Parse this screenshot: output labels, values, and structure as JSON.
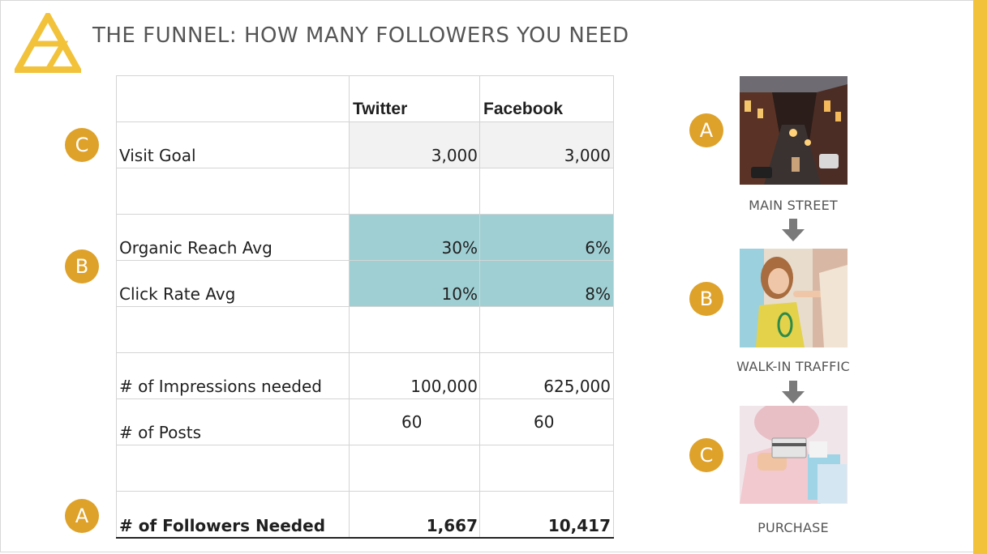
{
  "title": "THE FUNNEL: HOW MANY FOLLOWERS YOU NEED",
  "table": {
    "columns": [
      "Twitter",
      "Facebook"
    ],
    "rows": {
      "visit_goal": {
        "label": "Visit Goal",
        "twitter": "3,000",
        "facebook": "3,000"
      },
      "organic_reach": {
        "label": "Organic Reach Avg",
        "twitter": "30%",
        "facebook": "6%"
      },
      "click_rate": {
        "label": "Click Rate Avg",
        "twitter": "10%",
        "facebook": "8%"
      },
      "impressions": {
        "label": "# of Impressions needed",
        "twitter": "100,000",
        "facebook": "625,000"
      },
      "posts": {
        "label": "# of Posts",
        "twitter": "60",
        "facebook": "60"
      },
      "followers": {
        "label": "# of Followers Needed",
        "twitter": "1,667",
        "facebook": "10,417"
      }
    },
    "badges": {
      "visit_goal": "C",
      "rates": "B",
      "followers": "A"
    }
  },
  "funnel": {
    "steps": [
      {
        "badge": "A",
        "caption": "MAIN STREET",
        "icon": "main-street-photo"
      },
      {
        "badge": "B",
        "caption": "WALK-IN TRAFFIC",
        "icon": "shopping-woman-photo"
      },
      {
        "badge": "C",
        "caption": "PURCHASE",
        "icon": "card-payment-photo"
      }
    ]
  },
  "colors": {
    "accent": "#f2c23a",
    "badge": "#dea22a",
    "teal": "#9fcfd3",
    "header_gray": "#f2f2f2"
  }
}
